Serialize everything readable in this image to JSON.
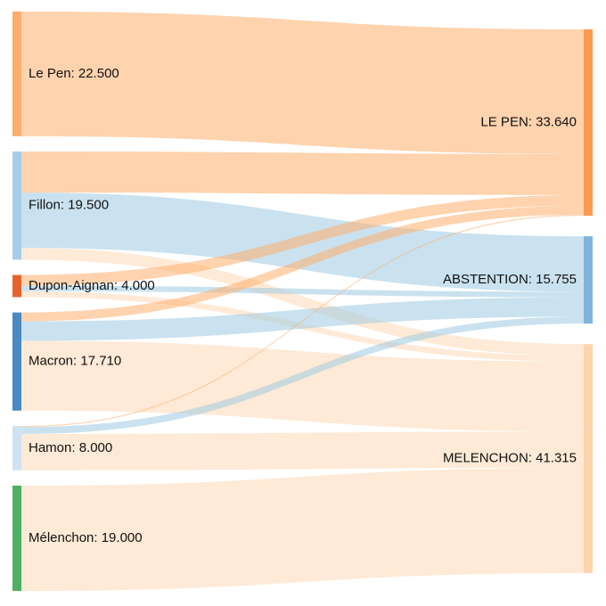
{
  "chart_data": {
    "type": "sankey",
    "nodes": [
      {
        "label": "Le Pen: 22.500",
        "value": 22.5,
        "color": "#fdae6b",
        "column": 0
      },
      {
        "label": "Fillon: 19.500",
        "value": 19.5,
        "color": "#a6cde6",
        "column": 0
      },
      {
        "label": "Dupon-Aignan: 4.000",
        "value": 4.0,
        "color": "#e6642b",
        "column": 0
      },
      {
        "label": "Macron: 17.710",
        "value": 17.71,
        "color": "#4a89c2",
        "column": 0
      },
      {
        "label": "Hamon: 8.000",
        "value": 8.0,
        "color": "#cfe2f3",
        "column": 0
      },
      {
        "label": "Mélenchon: 19.000",
        "value": 19.0,
        "color": "#4dae64",
        "column": 0
      },
      {
        "label": "LE PEN: 33.640",
        "value": 33.64,
        "color": "#fd9a4f",
        "column": 1
      },
      {
        "label": "ABSTENTION: 15.755",
        "value": 15.755,
        "color": "#7fb3dc",
        "column": 1
      },
      {
        "label": "MELENCHON: 41.315",
        "value": 41.315,
        "color": "#fdd4ac",
        "column": 1
      }
    ],
    "links": [
      {
        "source": 0,
        "target": 6,
        "value": 22.5,
        "color": "#fdae6b"
      },
      {
        "source": 1,
        "target": 6,
        "value": 7.4,
        "color": "#fdae6b"
      },
      {
        "source": 1,
        "target": 7,
        "value": 10.0,
        "color": "#9ecae1"
      },
      {
        "source": 1,
        "target": 8,
        "value": 2.1,
        "color": "#fdd9b5"
      },
      {
        "source": 2,
        "target": 6,
        "value": 1.94,
        "color": "#fdae6b"
      },
      {
        "source": 2,
        "target": 7,
        "value": 1.0,
        "color": "#9ecae1"
      },
      {
        "source": 2,
        "target": 8,
        "value": 1.06,
        "color": "#fdd9b5"
      },
      {
        "source": 3,
        "target": 6,
        "value": 1.6,
        "color": "#fdae6b"
      },
      {
        "source": 3,
        "target": 7,
        "value": 3.5,
        "color": "#9ecae1"
      },
      {
        "source": 3,
        "target": 8,
        "value": 12.61,
        "color": "#fdd9b5"
      },
      {
        "source": 4,
        "target": 6,
        "value": 0.2,
        "color": "#fdae6b"
      },
      {
        "source": 4,
        "target": 7,
        "value": 1.255,
        "color": "#9ecae1"
      },
      {
        "source": 4,
        "target": 8,
        "value": 6.545,
        "color": "#fdd9b5"
      },
      {
        "source": 5,
        "target": 8,
        "value": 19.0,
        "color": "#fdd9b5"
      }
    ]
  }
}
